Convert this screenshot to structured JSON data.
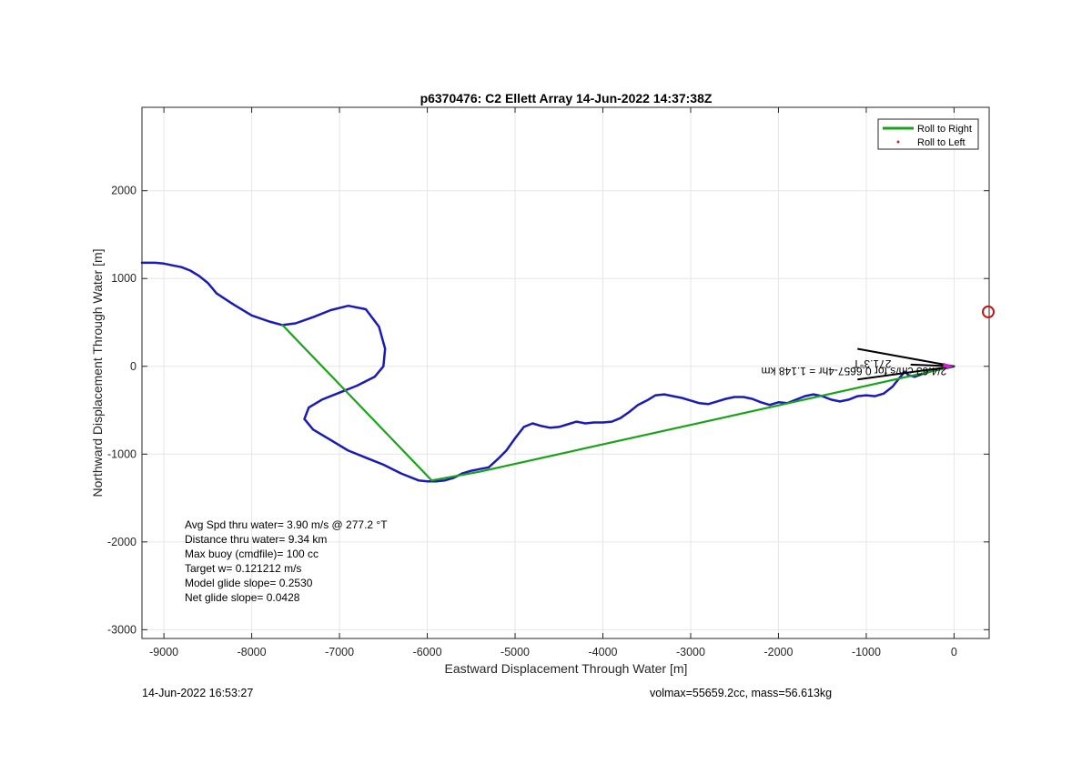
{
  "chart_data": {
    "type": "line",
    "title": "p6370476: C2 Ellett Array 14-Jun-2022 14:37:38Z",
    "xlabel": "Eastward Displacement Through Water [m]",
    "ylabel": "Northward Displacement Through Water [m]",
    "xlim": [
      -9250,
      400
    ],
    "ylim": [
      -3100,
      2950
    ],
    "xticks": [
      -9000,
      -8000,
      -7000,
      -6000,
      -5000,
      -4000,
      -3000,
      -2000,
      -1000,
      0
    ],
    "yticks": [
      -3000,
      -2000,
      -1000,
      0,
      1000,
      2000
    ],
    "grid": true,
    "legend": {
      "location": "top-right",
      "entries": [
        {
          "label": "Roll to Right",
          "color": "#1aa31a",
          "marker": "line"
        },
        {
          "label": "Roll to Left",
          "color": "#d62020",
          "marker": "dot"
        }
      ]
    },
    "series": [
      {
        "role": "track",
        "color": "#1a1ab8",
        "x": [
          0,
          -80,
          -200,
          -340,
          -450,
          -520,
          -560,
          -620,
          -700,
          -800,
          -900,
          -1000,
          -1100,
          -1200,
          -1300,
          -1400,
          -1500,
          -1600,
          -1700,
          -1800,
          -1900,
          -2000,
          -2100,
          -2200,
          -2300,
          -2400,
          -2500,
          -2600,
          -2700,
          -2800,
          -2900,
          -3000,
          -3100,
          -3200,
          -3300,
          -3400,
          -3500,
          -3600,
          -3700,
          -3800,
          -3900,
          -4000,
          -4100,
          -4200,
          -4300,
          -4400,
          -4500,
          -4600,
          -4700,
          -4800,
          -4900,
          -5000,
          -5100,
          -5200,
          -5300,
          -5400,
          -5500,
          -5600,
          -5700,
          -5800,
          -5900,
          -6000,
          -6100,
          -6300,
          -6500,
          -6700,
          -6900,
          -7100,
          -7300,
          -7400,
          -7350,
          -7200,
          -7000,
          -6800,
          -6600,
          -6500,
          -6480,
          -6550,
          -6700,
          -6900,
          -7100,
          -7300,
          -7500,
          -7650,
          -7800,
          -8000,
          -8200,
          -8400,
          -8500,
          -8600,
          -8700,
          -8800,
          -8900,
          -9000,
          -9100,
          -9250
        ],
        "y": [
          0,
          -20,
          -40,
          -80,
          -120,
          -100,
          -60,
          -130,
          -230,
          -310,
          -340,
          -330,
          -340,
          -380,
          -400,
          -380,
          -340,
          -320,
          -340,
          -380,
          -420,
          -410,
          -440,
          -410,
          -370,
          -350,
          -350,
          -370,
          -400,
          -430,
          -420,
          -390,
          -360,
          -340,
          -320,
          -330,
          -390,
          -440,
          -520,
          -590,
          -630,
          -640,
          -640,
          -650,
          -630,
          -660,
          -690,
          -700,
          -680,
          -650,
          -690,
          -820,
          -960,
          -1060,
          -1150,
          -1170,
          -1190,
          -1220,
          -1270,
          -1300,
          -1310,
          -1310,
          -1300,
          -1220,
          -1120,
          -1040,
          -960,
          -840,
          -720,
          -600,
          -470,
          -380,
          -300,
          -220,
          -120,
          0,
          200,
          450,
          650,
          690,
          640,
          560,
          490,
          470,
          510,
          580,
          700,
          830,
          950,
          1030,
          1090,
          1130,
          1150,
          1170,
          1180,
          1180
        ]
      },
      {
        "name": "Roll to Right",
        "role": "segment",
        "color": "#1aa31a",
        "x": [
          -7650,
          -5950,
          -5400,
          0
        ],
        "y": [
          470,
          -1300,
          -1200,
          0
        ]
      }
    ],
    "current_vector": {
      "label": "2/4.63 cm/s for 0.6657-4hr = 1.148 km",
      "heading_label": "271.3°T",
      "x0": 0,
      "y0": 0,
      "x1": -1100,
      "y1": 200
    },
    "target_marker": {
      "x": 400,
      "y": 620,
      "color": "#cc1111"
    },
    "annotations": [
      "Avg Spd thru water=  3.90 m/s @ 277.2 °T",
      "Distance thru water=  9.34 km",
      "Max buoy (cmdfile)= 100 cc",
      "Target w= 0.121212 m/s",
      "Model glide slope= 0.2530",
      "Net glide slope= 0.0428"
    ]
  },
  "footer": {
    "left": "14-Jun-2022 16:53:27",
    "right": "volmax=55659.2cc, mass=56.613kg"
  }
}
